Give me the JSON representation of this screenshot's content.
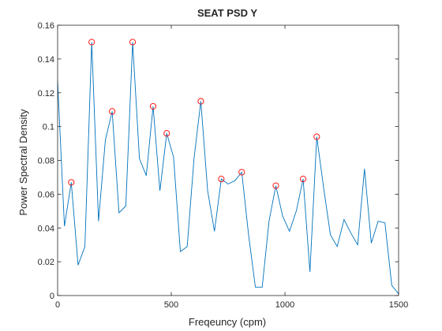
{
  "chart_data": {
    "type": "line",
    "title": "SEAT PSD Y",
    "xlabel": "Freqeuncy (cpm)",
    "ylabel": "Power Spectral Density",
    "xlim": [
      0,
      1500
    ],
    "ylim": [
      0,
      0.16
    ],
    "xticks": [
      0,
      500,
      1000,
      1500
    ],
    "yticks": [
      0,
      0.02,
      0.04,
      0.06,
      0.08,
      0.1,
      0.12,
      0.14,
      0.16
    ],
    "xtick_labels": [
      "0",
      "500",
      "1000",
      "1500"
    ],
    "ytick_labels": [
      "0",
      "0.02",
      "0.04",
      "0.06",
      "0.08",
      "0.1",
      "0.12",
      "0.14",
      "0.16"
    ],
    "grid": false,
    "colors": {
      "line": "#0072bd",
      "peaks": "#ff0000",
      "axes": "#262626"
    },
    "series": [
      {
        "x": [
          0,
          30,
          60,
          90,
          120,
          150,
          180,
          210,
          240,
          270,
          300,
          330,
          360,
          390,
          420,
          450,
          480,
          510,
          540,
          570,
          600,
          630,
          660,
          690,
          720,
          750,
          780,
          810,
          840,
          870,
          900,
          930,
          960,
          990,
          1020,
          1050,
          1080,
          1110,
          1140,
          1170,
          1200,
          1230,
          1260,
          1290,
          1320,
          1350,
          1380,
          1410,
          1440,
          1470,
          1500
        ],
        "y": [
          0.127,
          0.041,
          0.067,
          0.018,
          0.029,
          0.15,
          0.044,
          0.092,
          0.109,
          0.049,
          0.053,
          0.15,
          0.081,
          0.071,
          0.112,
          0.062,
          0.096,
          0.082,
          0.026,
          0.029,
          0.081,
          0.115,
          0.062,
          0.038,
          0.069,
          0.066,
          0.068,
          0.073,
          0.036,
          0.005,
          0.005,
          0.044,
          0.065,
          0.047,
          0.038,
          0.05,
          0.069,
          0.014,
          0.094,
          0.064,
          0.036,
          0.029,
          0.045,
          0.037,
          0.03,
          0.075,
          0.031,
          0.044,
          0.043,
          0.006,
          0.001
        ]
      }
    ],
    "peaks": {
      "x": [
        60,
        150,
        240,
        330,
        420,
        480,
        630,
        720,
        810,
        960,
        1080,
        1140
      ],
      "y": [
        0.067,
        0.15,
        0.109,
        0.15,
        0.112,
        0.096,
        0.115,
        0.069,
        0.073,
        0.065,
        0.069,
        0.094
      ]
    }
  }
}
